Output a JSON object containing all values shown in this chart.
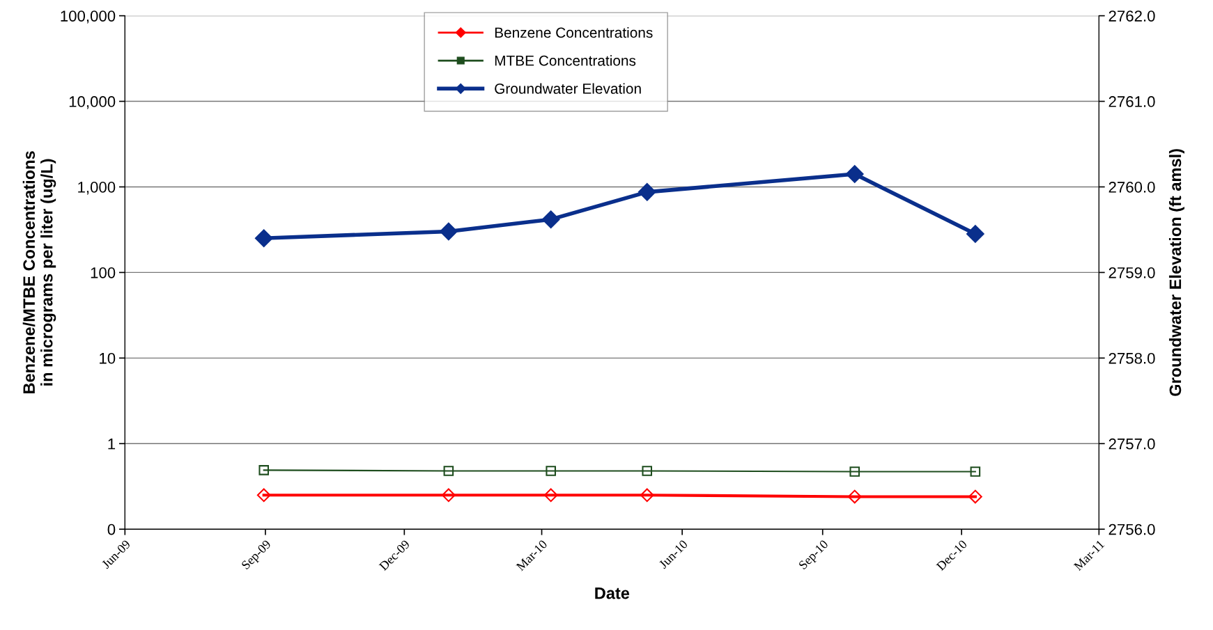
{
  "chart_data": {
    "type": "line",
    "xlabel": "Date",
    "ylabel": "Benzene/MTBE Concentrations\nin micrograms per liter (ug/L)",
    "y2label": "Groundwater Elevation (ft amsl)",
    "x": [
      "2009-08-31",
      "2009-12-30",
      "2010-03-07",
      "2010-05-09",
      "2010-09-22",
      "2010-12-10"
    ],
    "series": [
      {
        "name": "Benzene Concentrations",
        "color": "#ff0000",
        "values": [
          0.25,
          0.25,
          0.25,
          0.25,
          0.24,
          0.24
        ],
        "marker": "diamond"
      },
      {
        "name": "MTBE Concentrations",
        "color": "#1e4d1e",
        "values": [
          0.49,
          0.48,
          0.48,
          0.48,
          0.47,
          0.47
        ],
        "marker": "square"
      },
      {
        "name": "Groundwater Elevation",
        "color": "#0a2f8c",
        "values": [
          2759.4,
          2759.48,
          2759.62,
          2759.94,
          2760.15,
          2759.45
        ],
        "marker": "diamond",
        "axis": "y2"
      }
    ],
    "log": "y",
    "ylim": [
      0.1,
      100000
    ],
    "yticks": [
      {
        "value": 0.1,
        "label": "0"
      },
      1,
      10,
      100,
      {
        "value": 1000,
        "label": "1,000"
      },
      {
        "value": 10000,
        "label": "10,000"
      },
      {
        "value": 100000,
        "label": "100,000"
      }
    ],
    "y2lim": [
      2756.0,
      2762.0
    ],
    "y2ticks": [
      {
        "value": 2756,
        "label": "2756.0"
      },
      {
        "value": 2757,
        "label": "2757.0"
      },
      {
        "value": 2758,
        "label": "2758.0"
      },
      {
        "value": 2759,
        "label": "2759.0"
      },
      {
        "value": 2760,
        "label": "2760.0"
      },
      {
        "value": 2761,
        "label": "2761.0"
      },
      {
        "value": 2762,
        "label": "2762.0"
      }
    ],
    "xlim": [
      "2009-06-01",
      "2011-03-01"
    ],
    "xticks": [
      {
        "value": "2009-06-01",
        "label": "Jun-09"
      },
      {
        "value": "2009-09-01",
        "label": "Sep-09"
      },
      {
        "value": "2009-12-01",
        "label": "Dec-09"
      },
      {
        "value": "2010-03-01",
        "label": "Mar-10"
      },
      {
        "value": "2010-06-01",
        "label": "Jun-10"
      },
      {
        "value": "2010-09-01",
        "label": "Sep-10"
      },
      {
        "value": "2010-12-01",
        "label": "Dec-10"
      },
      {
        "value": "2011-03-01",
        "label": "Mar-11"
      }
    ],
    "grid": "y",
    "legend": "top"
  }
}
